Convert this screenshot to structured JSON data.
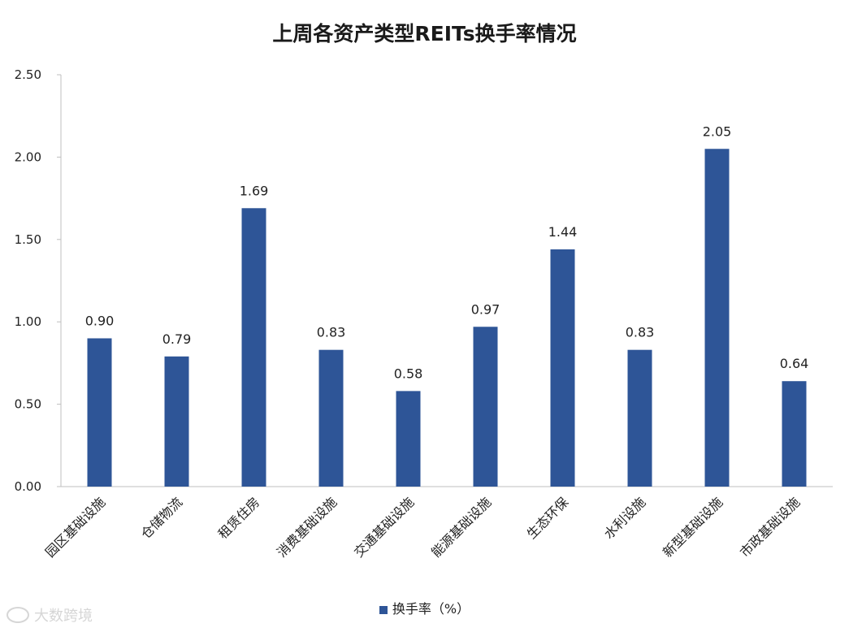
{
  "chart_data": {
    "type": "bar",
    "title": "上周各资产类型REITs换手率情况",
    "categories": [
      "园区基础设施",
      "仓储物流",
      "租赁住房",
      "消费基础设施",
      "交通基础设施",
      "能源基础设施",
      "生态环保",
      "水利设施",
      "新型基础设施",
      "市政基础设施"
    ],
    "series": [
      {
        "name": "换手率（%）",
        "values": [
          0.9,
          0.79,
          1.69,
          0.83,
          0.58,
          0.97,
          1.44,
          0.83,
          2.05,
          0.64
        ],
        "color": "#2e5597"
      }
    ],
    "data_labels": [
      "0.90",
      "0.79",
      "1.69",
      "0.83",
      "0.58",
      "0.97",
      "1.44",
      "0.83",
      "2.05",
      "0.64"
    ],
    "y_ticks": [
      "0.00",
      "0.50",
      "1.00",
      "1.50",
      "2.00",
      "2.50"
    ],
    "ylim": [
      0,
      2.5
    ],
    "xlabel": "",
    "ylabel": "",
    "grid": false,
    "legend_position": "bottom"
  },
  "watermark": {
    "text": "大数跨境",
    "icon": "logo-icon"
  }
}
